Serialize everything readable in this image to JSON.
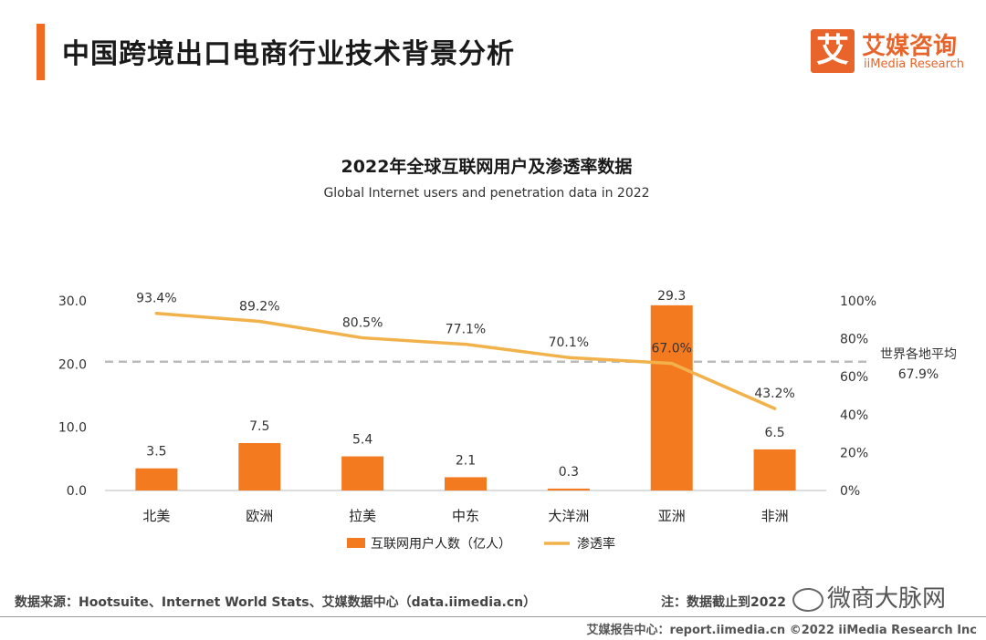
{
  "header": {
    "title": "中国跨境出口电商行业技术背景分析",
    "logo": {
      "mark": "艾",
      "cn": "艾媒咨询",
      "en": "iiMedia Research"
    }
  },
  "chart_data": {
    "type": "bar",
    "title": "2022年全球互联网用户及渗透率数据",
    "subtitle": "Global Internet users and penetration data in 2022",
    "categories": [
      "北美",
      "欧洲",
      "拉美",
      "中东",
      "大洋洲",
      "亚洲",
      "非洲"
    ],
    "series": [
      {
        "name": "互联网用户人数（亿人）",
        "type": "bar",
        "axis": "left",
        "color": "#f47a20",
        "values": [
          3.5,
          7.5,
          5.4,
          2.1,
          0.3,
          29.3,
          6.5
        ],
        "labels": [
          "3.5",
          "7.5",
          "5.4",
          "2.1",
          "0.3",
          "29.3",
          "6.5"
        ]
      },
      {
        "name": "渗透率",
        "type": "line",
        "axis": "right",
        "color": "#f2b24b",
        "values": [
          93.4,
          89.2,
          80.5,
          77.1,
          70.1,
          67.0,
          43.2
        ],
        "labels": [
          "93.4%",
          "89.2%",
          "80.5%",
          "77.1%",
          "70.1%",
          "67.0%",
          "43.2%"
        ]
      }
    ],
    "reference_line": {
      "label": "世界各地平均",
      "value_label": "67.9%",
      "value": 67.9,
      "axis": "right",
      "color": "#bbbbbb"
    },
    "y_left": {
      "ylim": [
        0,
        30
      ],
      "ticks": [
        "0.0",
        "10.0",
        "20.0",
        "30.0"
      ],
      "tick_values": [
        0,
        10,
        20,
        30
      ]
    },
    "y_right": {
      "ylim": [
        0,
        100
      ],
      "ticks": [
        "0%",
        "20%",
        "40%",
        "60%",
        "80%",
        "100%"
      ],
      "tick_values": [
        0,
        20,
        40,
        60,
        80,
        100
      ]
    },
    "legend_position": "bottom",
    "grid": false
  },
  "footer": {
    "source": "数据来源：Hootsuite、Internet World Stats、艾媒数据中心（data.iimedia.cn）",
    "note": "注：数据截止到2022",
    "bottom": "艾媒报告中心：report.iimedia.cn ©2022 iiMedia Research Inc",
    "watermark": "微商大脉网"
  }
}
